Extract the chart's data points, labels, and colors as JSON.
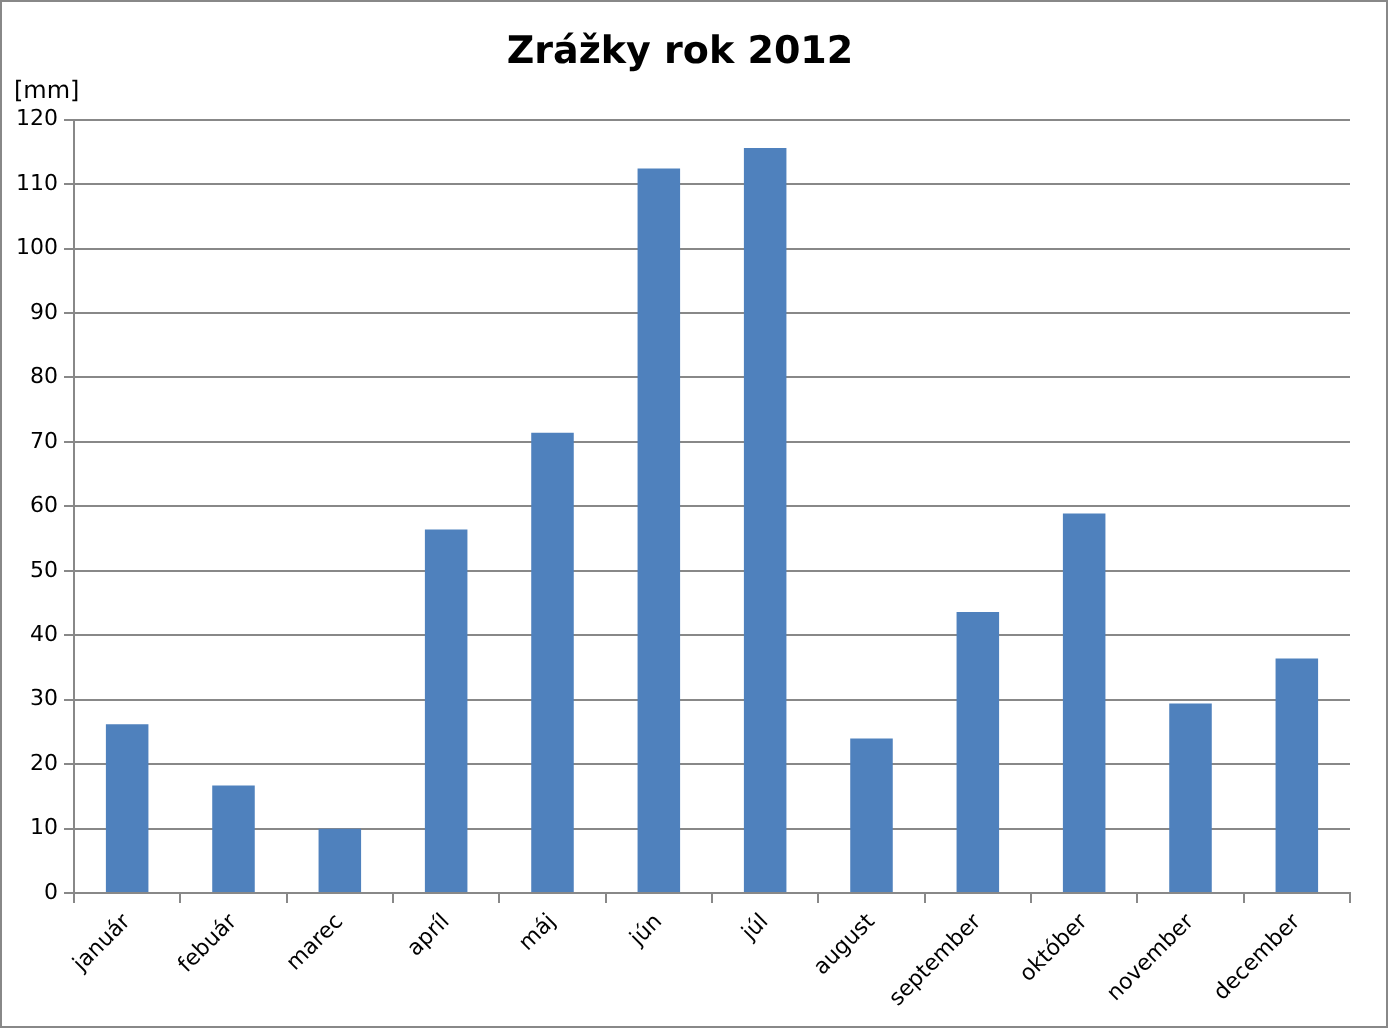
{
  "chart_data": {
    "type": "bar",
    "title": "Zrážky rok 2012",
    "ylabel": "[mm]",
    "categories": [
      "január",
      "febuár",
      "marec",
      "apríl",
      "máj",
      "jún",
      "júl",
      "august",
      "september",
      "október",
      "november",
      "december"
    ],
    "values": [
      26.2,
      16.7,
      10,
      56.4,
      71.4,
      112.4,
      115.6,
      24,
      43.6,
      58.9,
      29.4,
      36.4
    ],
    "color": "#4f81bd",
    "ylim": [
      0,
      120
    ],
    "yticks": [
      0,
      10,
      20,
      30,
      40,
      50,
      60,
      70,
      80,
      90,
      100,
      110,
      120
    ],
    "grid": "y",
    "legend": false
  }
}
